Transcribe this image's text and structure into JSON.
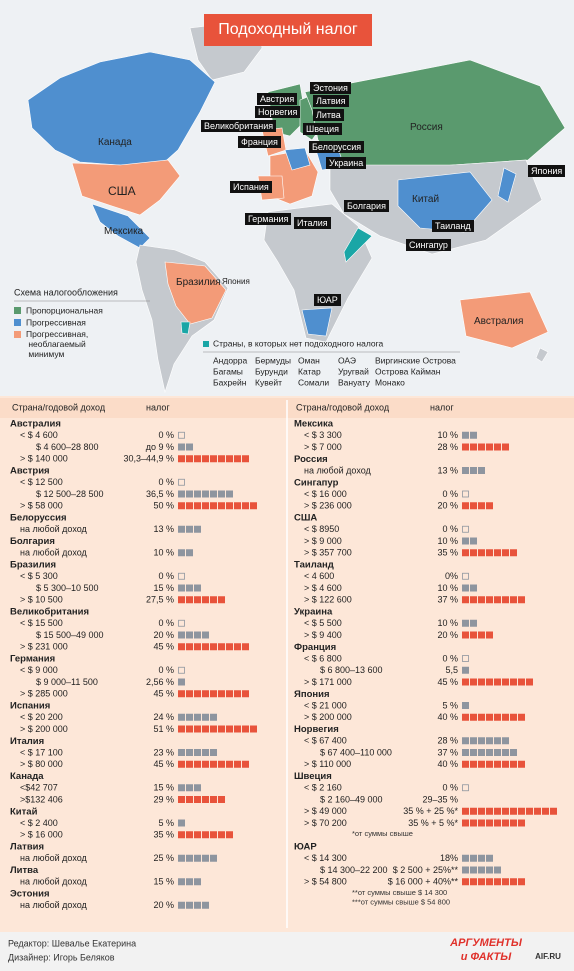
{
  "header": {
    "title": "Подоходный налог"
  },
  "map": {
    "labels": [
      "Канада",
      "США",
      "Мексика",
      "Бразилия",
      "Япония",
      "Россия",
      "Китай",
      "Австралия"
    ],
    "tags": [
      "Австрия",
      "Норвегия",
      "Великобритания",
      "Франция",
      "Испания",
      "Германия",
      "Италия",
      "Болгария",
      "Эстония",
      "Латвия",
      "Литва",
      "Швеция",
      "Белоруссия",
      "Украина",
      "Япония",
      "Таиланд",
      "Сингапур",
      "ЮАР"
    ]
  },
  "legend": {
    "title": "Схема налогообложения",
    "items": [
      {
        "label": "Пропорциональная",
        "color": "#5a9a6e"
      },
      {
        "label": "Прогрессивная",
        "color": "#4f8fcf"
      },
      {
        "label": "Прогрессивная, необлагаемый минимум",
        "color": "#f39b78"
      }
    ],
    "no_tax": {
      "label": "Страны, в которых нет подоходного налога",
      "color": "#1aa6a6",
      "columns": [
        [
          "Андорра",
          "Багамы",
          "Бахрейн"
        ],
        [
          "Бермуды",
          "Бурунди",
          "Кувейт"
        ],
        [
          "Оман",
          "Катар",
          "Сомали"
        ],
        [
          "ОАЭ",
          "Уругвай",
          "Вануату"
        ],
        [
          "Виргинские Острова",
          "Острова Кайман",
          "Монако"
        ]
      ]
    }
  },
  "table": {
    "header": {
      "country": "Страна/годовой доход",
      "tax": "налог"
    },
    "columns": [
      [
        {
          "country": "Австралия",
          "rows": [
            {
              "income": "< $ 4 600",
              "rate": "0 %",
              "squares": 0,
              "color": "#8e959f"
            },
            {
              "income": "$ 4 600–28 800",
              "rate": "до 9 %",
              "squares": 2,
              "color": "#8e959f"
            },
            {
              "income": "> $ 140 000",
              "rate": "30,3–44,9 %",
              "squares": 9,
              "color": "#e8533b"
            }
          ]
        },
        {
          "country": "Австрия",
          "rows": [
            {
              "income": "< $ 12 500",
              "rate": "0 %",
              "squares": 0,
              "color": "#8e959f"
            },
            {
              "income": "$ 12 500–28 500",
              "rate": "36,5 %",
              "squares": 7,
              "color": "#8e959f"
            },
            {
              "income": "> $ 58 000",
              "rate": "50 %",
              "squares": 10,
              "color": "#e8533b"
            }
          ]
        },
        {
          "country": "Белоруссия",
          "rows": [
            {
              "income": "на любой доход",
              "rate": "13 %",
              "squares": 3,
              "color": "#8e959f"
            }
          ]
        },
        {
          "country": "Болгария",
          "rows": [
            {
              "income": "на любой доход",
              "rate": "10 %",
              "squares": 2,
              "color": "#8e959f"
            }
          ]
        },
        {
          "country": "Бразилия",
          "rows": [
            {
              "income": "< $ 5 300",
              "rate": "0 %",
              "squares": 0,
              "color": "#8e959f"
            },
            {
              "income": "$ 5 300–10 500",
              "rate": "15 %",
              "squares": 3,
              "color": "#8e959f"
            },
            {
              "income": "> $ 10 500",
              "rate": "27,5 %",
              "squares": 6,
              "color": "#e8533b"
            }
          ]
        },
        {
          "country": "Великобритания",
          "rows": [
            {
              "income": "< $ 15 500",
              "rate": "0 %",
              "squares": 0,
              "color": "#8e959f"
            },
            {
              "income": "$ 15 500–49 000",
              "rate": "20 %",
              "squares": 4,
              "color": "#8e959f"
            },
            {
              "income": "> $ 231 000",
              "rate": "45 %",
              "squares": 9,
              "color": "#e8533b"
            }
          ]
        },
        {
          "country": "Германия",
          "rows": [
            {
              "income": "< $ 9 000",
              "rate": "0 %",
              "squares": 0,
              "color": "#8e959f"
            },
            {
              "income": "$ 9 000–11 500",
              "rate": "2,56 %",
              "squares": 1,
              "color": "#8e959f"
            },
            {
              "income": "> $ 285 000",
              "rate": "45 %",
              "squares": 9,
              "color": "#e8533b"
            }
          ]
        },
        {
          "country": "Испания",
          "rows": [
            {
              "income": "< $ 20 200",
              "rate": "24 %",
              "squares": 5,
              "color": "#8e959f"
            },
            {
              "income": "> $ 200 000",
              "rate": "51 %",
              "squares": 10,
              "color": "#e8533b"
            }
          ]
        },
        {
          "country": "Италия",
          "rows": [
            {
              "income": "< $ 17 100",
              "rate": "23 %",
              "squares": 5,
              "color": "#8e959f"
            },
            {
              "income": "> $ 80 000",
              "rate": "45 %",
              "squares": 9,
              "color": "#e8533b"
            }
          ]
        },
        {
          "country": "Канада",
          "rows": [
            {
              "income": "<$42 707",
              "rate": "15 %",
              "squares": 3,
              "color": "#8e959f"
            },
            {
              "income": ">$132 406",
              "rate": "29 %",
              "squares": 6,
              "color": "#e8533b"
            }
          ]
        },
        {
          "country": "Китай",
          "rows": [
            {
              "income": "< $ 2 400",
              "rate": "5 %",
              "squares": 1,
              "color": "#8e959f"
            },
            {
              "income": "> $ 16 000",
              "rate": "35 %",
              "squares": 7,
              "color": "#e8533b"
            }
          ]
        },
        {
          "country": "Латвия",
          "rows": [
            {
              "income": "на любой доход",
              "rate": "25 %",
              "squares": 5,
              "color": "#8e959f"
            }
          ]
        },
        {
          "country": "Литва",
          "rows": [
            {
              "income": "на любой доход",
              "rate": "15 %",
              "squares": 3,
              "color": "#8e959f"
            }
          ]
        },
        {
          "country": "Эстония",
          "rows": [
            {
              "income": "на любой доход",
              "rate": "20 %",
              "squares": 4,
              "color": "#8e959f"
            }
          ]
        }
      ],
      [
        {
          "country": "Мексика",
          "rows": [
            {
              "income": "< $ 3 300",
              "rate": "10 %",
              "squares": 2,
              "color": "#8e959f"
            },
            {
              "income": "> $ 7 000",
              "rate": "28 %",
              "squares": 6,
              "color": "#e8533b"
            }
          ]
        },
        {
          "country": "Россия",
          "rows": [
            {
              "income": "на любой доход",
              "rate": "13 %",
              "squares": 3,
              "color": "#8e959f"
            }
          ]
        },
        {
          "country": "Сингапур",
          "rows": [
            {
              "income": "< $ 16 000",
              "rate": "0 %",
              "squares": 0,
              "color": "#8e959f"
            },
            {
              "income": "> $ 236 000",
              "rate": "20 %",
              "squares": 4,
              "color": "#e8533b"
            }
          ]
        },
        {
          "country": "США",
          "rows": [
            {
              "income": "< $ 8950",
              "rate": "0 %",
              "squares": 0,
              "color": "#8e959f"
            },
            {
              "income": "> $ 9 000",
              "rate": "10 %",
              "squares": 2,
              "color": "#8e959f"
            },
            {
              "income": "> $ 357 700",
              "rate": "35 %",
              "squares": 7,
              "color": "#e8533b"
            }
          ]
        },
        {
          "country": "Таиланд",
          "rows": [
            {
              "income": "< 4 600",
              "rate": "0%",
              "squares": 0,
              "color": "#8e959f"
            },
            {
              "income": "> $ 4 600",
              "rate": "10 %",
              "squares": 2,
              "color": "#8e959f"
            },
            {
              "income": "> $ 122 600",
              "rate": "37 %",
              "squares": 8,
              "color": "#e8533b"
            }
          ]
        },
        {
          "country": "Украина",
          "rows": [
            {
              "income": "< $ 5 500",
              "rate": "10 %",
              "squares": 2,
              "color": "#8e959f"
            },
            {
              "income": "> $ 9 400",
              "rate": "20 %",
              "squares": 4,
              "color": "#e8533b"
            }
          ]
        },
        {
          "country": "Франция",
          "rows": [
            {
              "income": "< $ 6 800",
              "rate": "0 %",
              "squares": 0,
              "color": "#8e959f"
            },
            {
              "income": "$ 6 800–13 600",
              "rate": "5,5",
              "squares": 1,
              "color": "#8e959f"
            },
            {
              "income": "> $ 171 000",
              "rate": "45 %",
              "squares": 9,
              "color": "#e8533b"
            }
          ]
        },
        {
          "country": "Япония",
          "rows": [
            {
              "income": "< $ 21 000",
              "rate": "5 %",
              "squares": 1,
              "color": "#8e959f"
            },
            {
              "income": "> $ 200 000",
              "rate": "40 %",
              "squares": 8,
              "color": "#e8533b"
            }
          ]
        },
        {
          "country": "Норвегия",
          "rows": [
            {
              "income": "< $ 67 400",
              "rate": "28 %",
              "squares": 6,
              "color": "#8e959f"
            },
            {
              "income": "$ 67 400–110 000",
              "rate": "37 %",
              "squares": 7,
              "color": "#8e959f"
            },
            {
              "income": "> $ 110 000",
              "rate": "40 %",
              "squares": 8,
              "color": "#e8533b"
            }
          ]
        },
        {
          "country": "Швеция",
          "rows": [
            {
              "income": "< $ 2 160",
              "rate": "0 %",
              "squares": 0,
              "color": "#8e959f"
            },
            {
              "income": "$ 2 160–49 000",
              "rate": "29–35 %",
              "squares": null,
              "color": "#8e959f"
            },
            {
              "income": "> $ 49 000",
              "rate": "35 % + 25 %*",
              "squares": 12,
              "color": "#e8533b"
            },
            {
              "income": "> $ 70 200",
              "rate": "35 % + 5 %*",
              "squares": 8,
              "color": "#e8533b"
            }
          ],
          "notes": [
            "*от суммы свыше"
          ]
        },
        {
          "country": "ЮАР",
          "rows": [
            {
              "income": "< $ 14 300",
              "rate": "18%",
              "squares": 4,
              "color": "#8e959f"
            },
            {
              "income": "$ 14 300–22 200",
              "rate": "$ 2 500 + 25%**",
              "squares": 5,
              "color": "#8e959f"
            },
            {
              "income": "> $ 54 800",
              "rate": "$ 16 000 + 40%**",
              "squares": 8,
              "color": "#e8533b"
            }
          ],
          "notes": [
            "**от суммы свыше $ 14 300",
            "***от суммы свыше $ 54 800"
          ]
        }
      ]
    ]
  },
  "footer": {
    "editor": "Редактор: Шевалье Екатерина",
    "designer": "Дизайнер: Игорь Беляков",
    "logo_top": "АРГУМЕНТЫ",
    "logo_bottom": "и ФАКТЫ",
    "site": "AIF.RU"
  }
}
